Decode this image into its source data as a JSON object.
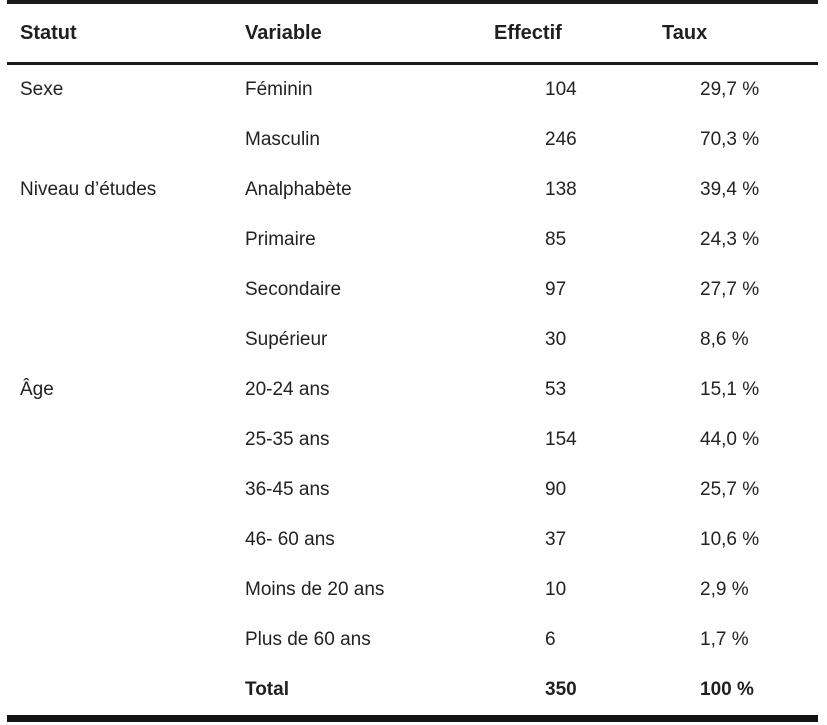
{
  "table": {
    "headers": {
      "statut": "Statut",
      "variable": "Variable",
      "effectif": "Effectif",
      "taux": "Taux"
    },
    "rows": [
      {
        "statut": "Sexe",
        "variable": "Féminin",
        "effectif": "104",
        "taux": "29,7 %"
      },
      {
        "statut": "",
        "variable": "Masculin",
        "effectif": "246",
        "taux": "70,3 %"
      },
      {
        "statut": "Niveau d’études",
        "variable": "Analphabète",
        "effectif": "138",
        "taux": "39,4 %"
      },
      {
        "statut": "",
        "variable": "Primaire",
        "effectif": "85",
        "taux": "24,3 %"
      },
      {
        "statut": "",
        "variable": "Secondaire",
        "effectif": "97",
        "taux": "27,7 %"
      },
      {
        "statut": "",
        "variable": "Supérieur",
        "effectif": "30",
        "taux": "8,6 %"
      },
      {
        "statut": "Âge",
        "variable": "20-24 ans",
        "effectif": "53",
        "taux": "15,1 %"
      },
      {
        "statut": "",
        "variable": "25-35 ans",
        "effectif": "154",
        "taux": "44,0 %"
      },
      {
        "statut": "",
        "variable": "36-45 ans",
        "effectif": "90",
        "taux": "25,7 %"
      },
      {
        "statut": "",
        "variable": "46- 60 ans",
        "effectif": "37",
        "taux": "10,6 %"
      },
      {
        "statut": "",
        "variable": "Moins de 20 ans",
        "effectif": "10",
        "taux": "2,9 %"
      },
      {
        "statut": "",
        "variable": "Plus de 60 ans",
        "effectif": "6",
        "taux": "1,7 %"
      }
    ],
    "total_row": {
      "statut": "",
      "variable": "Total",
      "effectif": "350",
      "taux": "100 %"
    }
  },
  "colors": {
    "text": "#242122",
    "border": "#1e1a1c",
    "background": "#ffffff"
  }
}
